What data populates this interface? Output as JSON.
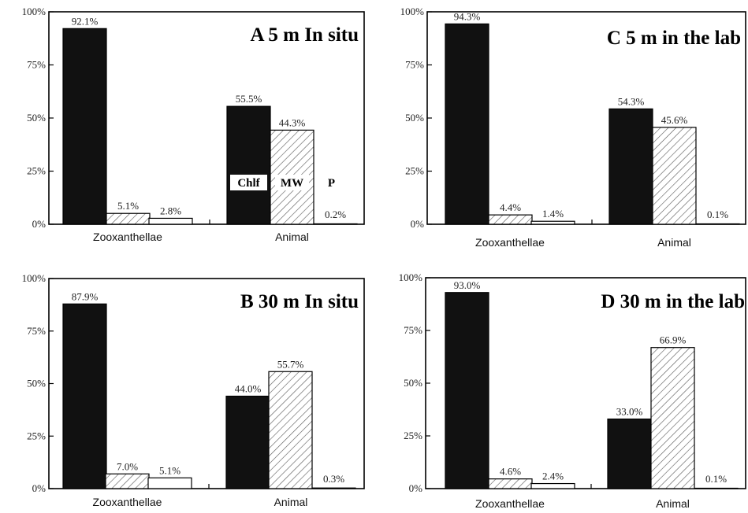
{
  "colors": {
    "chlf": "#111111",
    "mw": "#ffffff",
    "hatch": "#555555",
    "p": "#ffffff",
    "axis": "#000000"
  },
  "legend": {
    "chlf": "Chlf",
    "mw": "MW",
    "p": "P"
  },
  "chart_data": [
    {
      "type": "bar",
      "title": "A 5 m In situ",
      "categories": [
        "Zooxanthellae",
        "Animal"
      ],
      "series": [
        {
          "name": "Chlf",
          "values": [
            92.1,
            55.5
          ]
        },
        {
          "name": "MW",
          "values": [
            5.1,
            44.3
          ]
        },
        {
          "name": "P",
          "values": [
            2.8,
            0.2
          ]
        }
      ],
      "labels": [
        [
          "92.1%",
          "5.1%",
          "2.8%"
        ],
        [
          "55.5%",
          "44.3%",
          "0.2%"
        ]
      ],
      "ylim": [
        0,
        100
      ],
      "yticks": [
        "0%",
        "25%",
        "50%",
        "75%",
        "100%"
      ],
      "legend": "inside, above Animal bars"
    },
    {
      "type": "bar",
      "title": "B 30 m In situ",
      "categories": [
        "Zooxanthellae",
        "Animal"
      ],
      "series": [
        {
          "name": "Chlf",
          "values": [
            87.9,
            44.0
          ]
        },
        {
          "name": "MW",
          "values": [
            7.0,
            55.7
          ]
        },
        {
          "name": "P",
          "values": [
            5.1,
            0.3
          ]
        }
      ],
      "labels": [
        [
          "87.9%",
          "7.0%",
          "5.1%"
        ],
        [
          "44.0%",
          "55.7%",
          "0.3%"
        ]
      ],
      "ylim": [
        0,
        100
      ],
      "yticks": [
        "0%",
        "25%",
        "50%",
        "75%",
        "100%"
      ]
    },
    {
      "type": "bar",
      "title": "C 5 m in the lab",
      "categories": [
        "Zooxanthellae",
        "Animal"
      ],
      "series": [
        {
          "name": "Chlf",
          "values": [
            94.3,
            54.3
          ]
        },
        {
          "name": "MW",
          "values": [
            4.4,
            45.6
          ]
        },
        {
          "name": "P",
          "values": [
            1.4,
            0.1
          ]
        }
      ],
      "labels": [
        [
          "94.3%",
          "4.4%",
          "1.4%"
        ],
        [
          "54.3%",
          "45.6%",
          "0.1%"
        ]
      ],
      "ylim": [
        0,
        100
      ],
      "yticks": [
        "0%",
        "25%",
        "50%",
        "75%",
        "100%"
      ]
    },
    {
      "type": "bar",
      "title": "D 30 m in the lab",
      "categories": [
        "Zooxanthellae",
        "Animal"
      ],
      "series": [
        {
          "name": "Chlf",
          "values": [
            93.0,
            33.0
          ]
        },
        {
          "name": "MW",
          "values": [
            4.6,
            66.9
          ]
        },
        {
          "name": "P",
          "values": [
            2.4,
            0.1
          ]
        }
      ],
      "labels": [
        [
          "93.0%",
          "4.6%",
          "2.4%"
        ],
        [
          "33.0%",
          "66.9%",
          "0.1%"
        ]
      ],
      "ylim": [
        0,
        100
      ],
      "yticks": [
        "0%",
        "25%",
        "50%",
        "75%",
        "100%"
      ]
    }
  ]
}
